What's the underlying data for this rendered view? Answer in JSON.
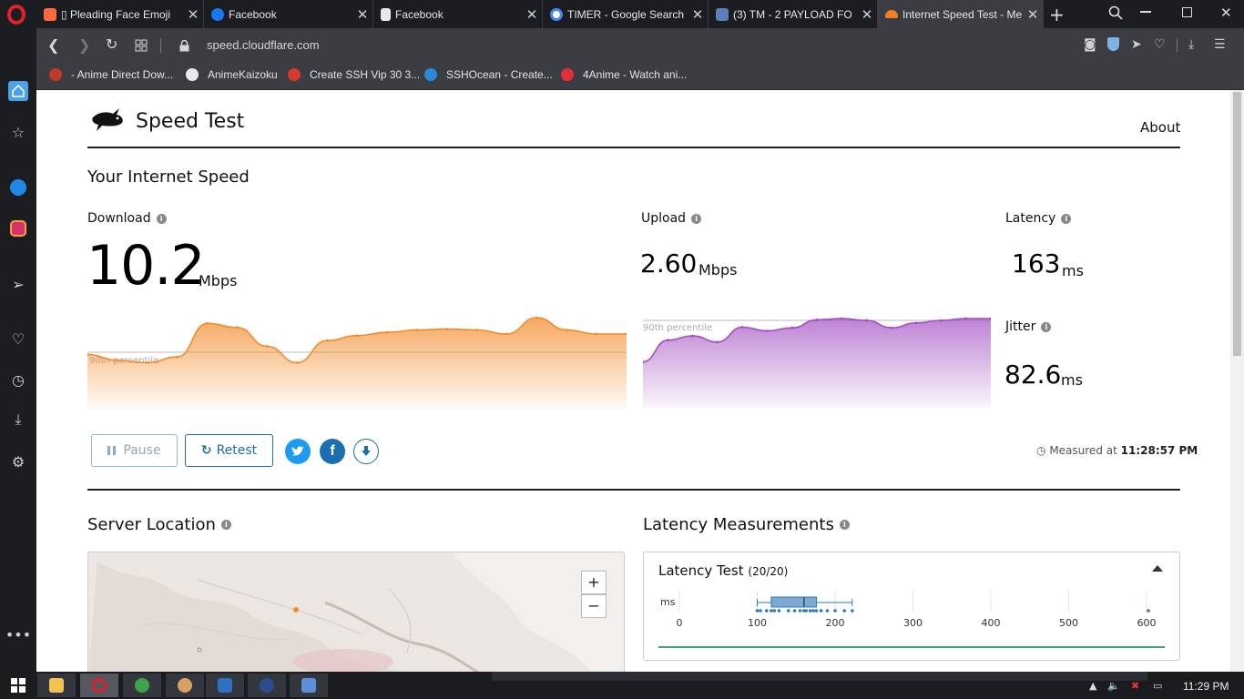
{
  "browser": {
    "tabs": [
      {
        "title": "▯ Pleading Face Emoji",
        "color": "#ff6a3d"
      },
      {
        "title": "Facebook",
        "color": "#1877f2"
      },
      {
        "title": "Facebook",
        "color": "#e8e8e8"
      },
      {
        "title": "TIMER - Google Search",
        "color": "#4285f4"
      },
      {
        "title": "(3) TM - 2 PAYLOAD FO",
        "color": "#5b7fbd"
      },
      {
        "title": "Internet Speed Test - Me",
        "color": "#f38020"
      }
    ],
    "new_tab": "+",
    "url": "speed.cloudflare.com",
    "bookmarks": [
      {
        "label": "- Anime Direct Dow...",
        "color": "#c0392b"
      },
      {
        "label": "AnimeKaizoku",
        "color": "#e9e9e9"
      },
      {
        "label": "Create SSH Vip 30 3...",
        "color": "#d63a2f"
      },
      {
        "label": "SSHOcean - Create...",
        "color": "#2b88d8"
      },
      {
        "label": "4Anime - Watch ani...",
        "color": "#e0303a"
      }
    ]
  },
  "page": {
    "title": "Speed Test",
    "about": "About",
    "section_title": "Your Internet Speed",
    "download": {
      "label": "Download",
      "value": "10.2",
      "unit": "Mbps",
      "percentile_label": "90th percentile",
      "color": "#f28b2b"
    },
    "upload": {
      "label": "Upload",
      "value": "2.60",
      "unit": "Mbps",
      "percentile_label": "90th percentile",
      "color": "#a24cc2"
    },
    "latency": {
      "label": "Latency",
      "value": "163",
      "unit": "ms"
    },
    "jitter": {
      "label": "Jitter",
      "value": "82.6",
      "unit": "ms"
    },
    "buttons": {
      "pause": "Pause",
      "retest": "Retest"
    },
    "share": {
      "twitter": "twitter-icon",
      "facebook": "facebook-icon",
      "download": "download-icon"
    },
    "measured_prefix": "Measured at",
    "measured_time": "11:28:57 PM",
    "server_location_title": "Server Location",
    "latency_measurements_title": "Latency Measurements",
    "latency_test_title": "Latency Test",
    "latency_test_count": "(20/20)",
    "latency_axis_unit": "ms",
    "latency_ticks": [
      "0",
      "100",
      "200",
      "300",
      "400",
      "500",
      "600"
    ],
    "map_zoom_in": "+",
    "map_zoom_out": "−"
  },
  "chart_data": [
    {
      "type": "area",
      "series": [
        {
          "name": "Download",
          "values": [
            0.55,
            0.48,
            0.45,
            0.52,
            0.93,
            0.88,
            0.65,
            0.45,
            0.72,
            0.78,
            0.82,
            0.85,
            0.86,
            0.85,
            0.8,
            1.0,
            0.85,
            0.8,
            0.8
          ]
        }
      ],
      "reference_line": "90th percentile",
      "color": "#f28b2b"
    },
    {
      "type": "area",
      "series": [
        {
          "name": "Upload",
          "values": [
            0.3,
            0.65,
            0.72,
            0.62,
            0.86,
            0.8,
            0.85,
            0.98,
            1.0,
            0.97,
            0.85,
            0.93,
            0.97,
            1.0,
            1.0
          ]
        }
      ],
      "reference_line": "90th percentile",
      "color": "#a24cc2"
    },
    {
      "type": "scatter",
      "title": "Latency Test",
      "xlabel": "ms",
      "xlim": [
        0,
        600
      ],
      "x_ticks": [
        0,
        100,
        200,
        300,
        400,
        500,
        600
      ],
      "values": [
        100,
        104,
        112,
        118,
        122,
        128,
        140,
        148,
        155,
        160,
        163,
        168,
        172,
        176,
        182,
        190,
        200,
        212,
        222,
        605
      ],
      "box": {
        "min": 100,
        "q1": 118,
        "median": 160,
        "q3": 176,
        "max": 222
      }
    }
  ],
  "taskbar": {
    "apps": [
      "file-explorer-icon",
      "opera-icon",
      "browser-icon",
      "cat-icon",
      "app-icon",
      "media-icon",
      "network-icon"
    ],
    "time": "11:29 PM"
  }
}
